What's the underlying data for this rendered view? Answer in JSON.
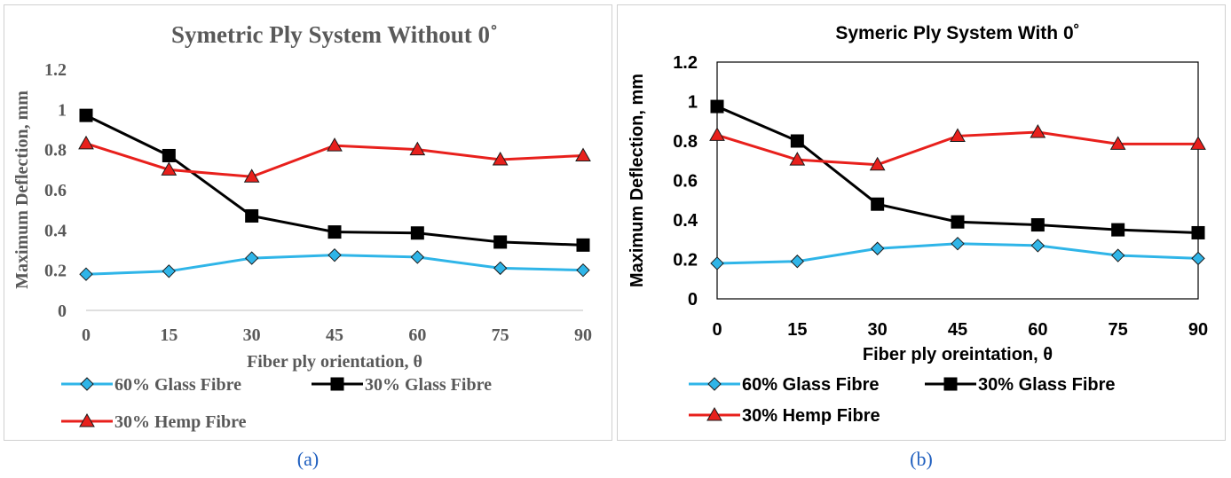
{
  "chart_data": [
    {
      "type": "line",
      "title": "Symetric Ply System Without 0˚",
      "xlabel": "Fiber ply orientation, θ",
      "ylabel": "Maximum Deflection, mm",
      "x": [
        0,
        15,
        30,
        45,
        60,
        75,
        90
      ],
      "x_tick_labels": [
        "0",
        "15",
        "30",
        "45",
        "60",
        "75",
        "90"
      ],
      "ylim": [
        0,
        1.2
      ],
      "y_tick_labels": [
        "0",
        "0.2",
        "0.4",
        "0.6",
        "0.8",
        "1",
        "1.2"
      ],
      "series": [
        {
          "name": "60% Glass Fibre",
          "marker": "diamond",
          "color": "#2fb5e8",
          "values": [
            0.18,
            0.195,
            0.26,
            0.275,
            0.265,
            0.21,
            0.2
          ]
        },
        {
          "name": "30% Glass Fibre",
          "marker": "square",
          "color": "#000000",
          "values": [
            0.97,
            0.77,
            0.47,
            0.39,
            0.385,
            0.34,
            0.325
          ]
        },
        {
          "name": "30% Hemp Fibre",
          "marker": "triangle",
          "color": "#e8201c",
          "values": [
            0.83,
            0.7,
            0.665,
            0.82,
            0.8,
            0.75,
            0.77
          ]
        }
      ],
      "grid": false,
      "legend": "bottom",
      "caption": "(a)"
    },
    {
      "type": "line",
      "title": "Symeric Ply System With 0˚",
      "xlabel": "Fiber ply oreintation, θ",
      "ylabel": "Maximum Deflection, mm",
      "x": [
        0,
        15,
        30,
        45,
        60,
        75,
        90
      ],
      "x_tick_labels": [
        "0",
        "15",
        "30",
        "45",
        "60",
        "75",
        "90"
      ],
      "ylim": [
        0,
        1.2
      ],
      "y_tick_labels": [
        "0",
        "0.2",
        "0.4",
        "0.6",
        "0.8",
        "1",
        "1.2"
      ],
      "series": [
        {
          "name": "60% Glass Fibre",
          "marker": "diamond",
          "color": "#2fb5e8",
          "values": [
            0.18,
            0.19,
            0.255,
            0.28,
            0.27,
            0.22,
            0.205
          ]
        },
        {
          "name": "30% Glass Fibre",
          "marker": "square",
          "color": "#000000",
          "values": [
            0.975,
            0.8,
            0.48,
            0.39,
            0.375,
            0.35,
            0.335
          ]
        },
        {
          "name": "30% Hemp Fibre",
          "marker": "triangle",
          "color": "#e8201c",
          "values": [
            0.83,
            0.705,
            0.68,
            0.825,
            0.845,
            0.785,
            0.785
          ]
        }
      ],
      "grid": false,
      "legend": "bottom",
      "caption": "(b)"
    }
  ]
}
